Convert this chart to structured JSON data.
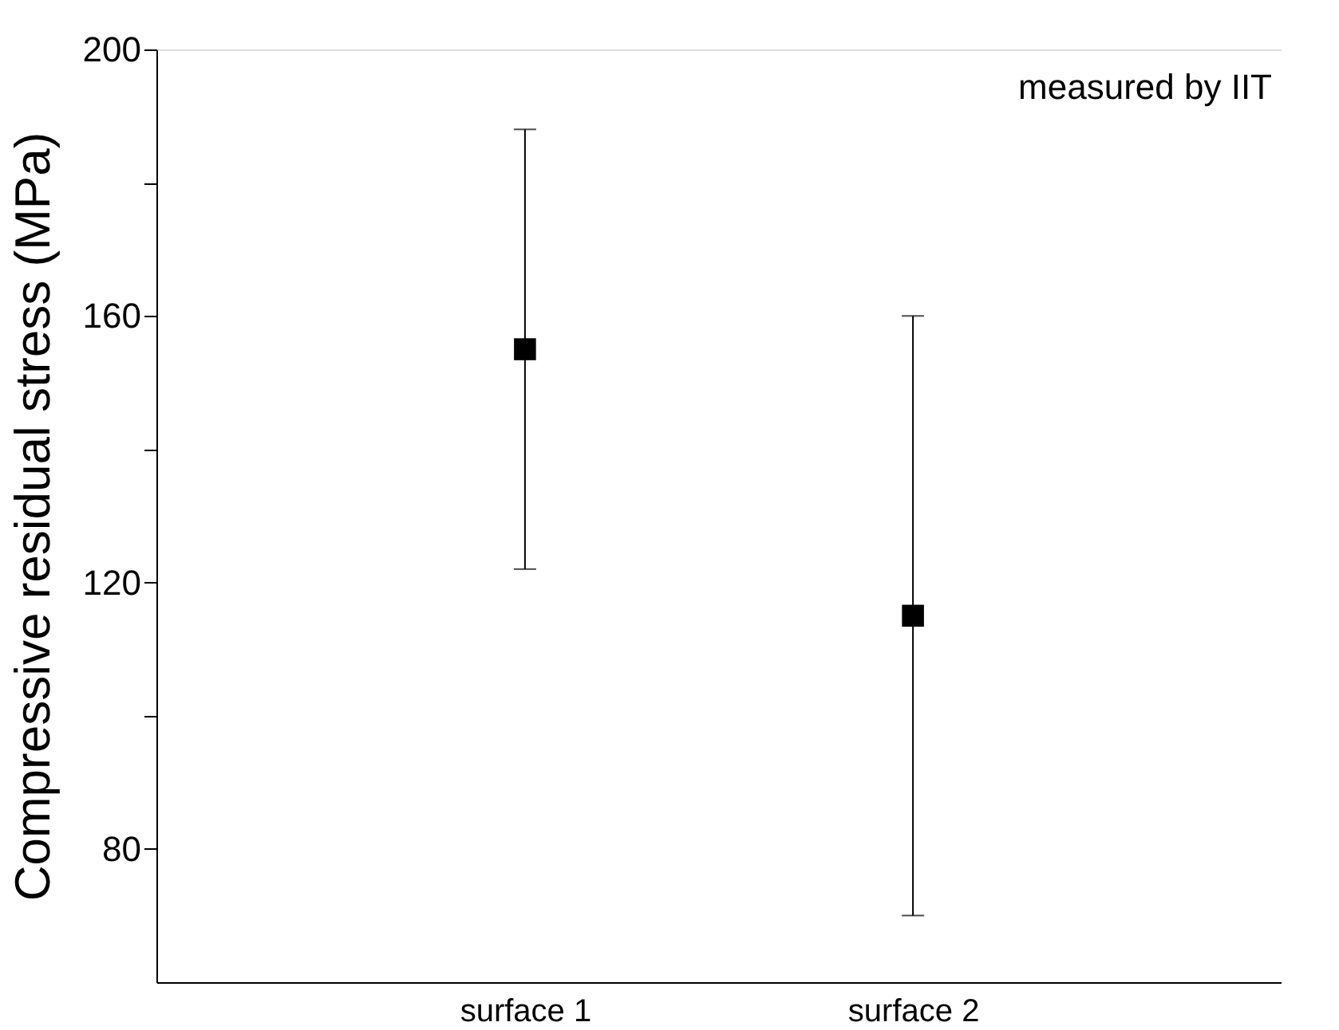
{
  "chart_data": {
    "type": "scatter",
    "ylabel": "Compressive residual stress (MPa)",
    "categories": [
      "surface 1",
      "surface 2"
    ],
    "series": [
      {
        "color": "#000000",
        "values": [
          155,
          115
        ],
        "errors": [
          33,
          45
        ]
      }
    ],
    "marker": "square",
    "grid": false,
    "ylim": [
      60,
      200
    ],
    "yticks": [
      {
        "value": 80,
        "label": "80"
      },
      {
        "value": 100,
        "label": null
      },
      {
        "value": 120,
        "label": "120"
      },
      {
        "value": 140,
        "label": null
      },
      {
        "value": 160,
        "label": "160"
      },
      {
        "value": 180,
        "label": null
      },
      {
        "value": 200,
        "label": "200"
      }
    ],
    "annotations": [
      "measured by IIT"
    ]
  }
}
